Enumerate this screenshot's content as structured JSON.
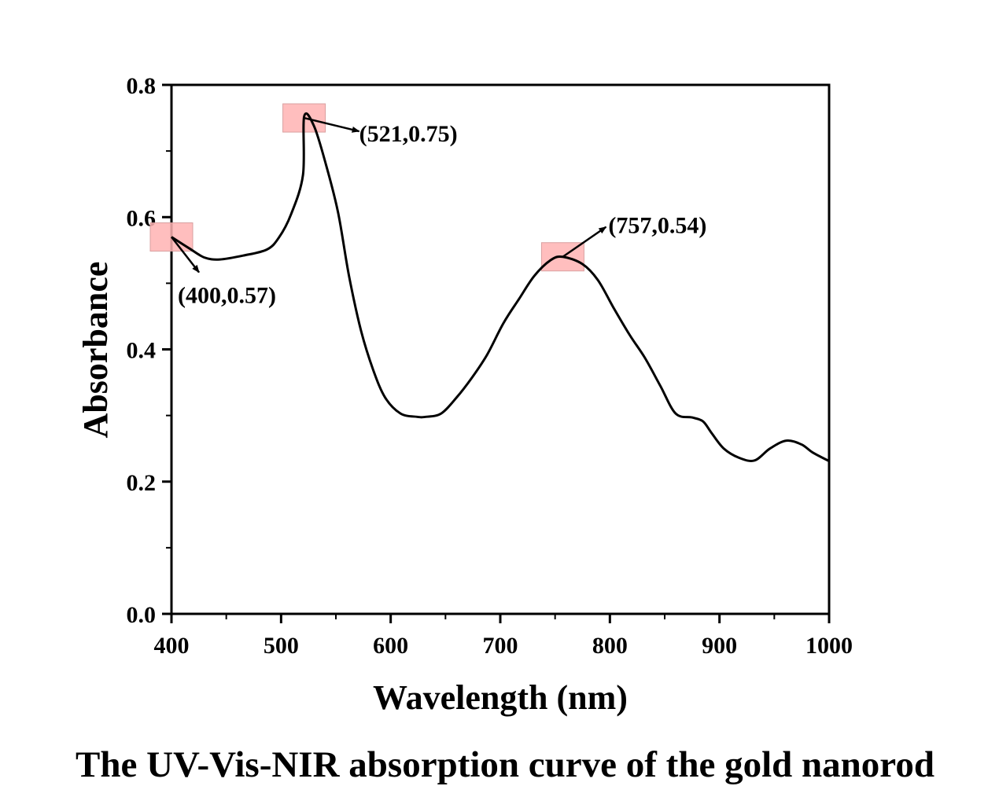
{
  "caption": "The UV-Vis-NIR absorption curve of the gold nanorod",
  "chart_data": {
    "type": "line",
    "title": "",
    "xlabel": "Wavelength (nm)",
    "ylabel": "Absorbance",
    "xlim": [
      400,
      1000
    ],
    "ylim": [
      0.0,
      0.8
    ],
    "xticks": [
      400,
      500,
      600,
      700,
      800,
      900,
      1000
    ],
    "xtick_labels": [
      "400",
      "500",
      "600",
      "700",
      "800",
      "900",
      "1000"
    ],
    "xminor_ticks": [
      450,
      550,
      650,
      750,
      850,
      950
    ],
    "yticks": [
      0.0,
      0.2,
      0.4,
      0.6,
      0.8
    ],
    "ytick_labels": [
      "0.0",
      "0.2",
      "0.4",
      "0.6",
      "0.8"
    ],
    "yminor_ticks": [
      0.1,
      0.3,
      0.5,
      0.7
    ],
    "grid": false,
    "legend": "none",
    "line_color": "#000000",
    "series": [
      {
        "name": "gold nanorod",
        "x": [
          400,
          416,
          430,
          444,
          466,
          487,
          498,
          509,
          520,
          521,
          530,
          541,
          552,
          562,
          573,
          584,
          595,
          609,
          624,
          632,
          646,
          660,
          674,
          688,
          703,
          717,
          731,
          746,
          757,
          775,
          789,
          803,
          818,
          832,
          846,
          860,
          875,
          885,
          893,
          904,
          918,
          932,
          946,
          961,
          975,
          985,
          1000
        ],
        "y": [
          0.57,
          0.553,
          0.539,
          0.536,
          0.542,
          0.551,
          0.569,
          0.604,
          0.664,
          0.752,
          0.738,
          0.679,
          0.607,
          0.511,
          0.428,
          0.369,
          0.327,
          0.303,
          0.298,
          0.298,
          0.303,
          0.327,
          0.357,
          0.392,
          0.44,
          0.476,
          0.511,
          0.535,
          0.54,
          0.529,
          0.505,
          0.464,
          0.422,
          0.387,
          0.345,
          0.303,
          0.297,
          0.291,
          0.273,
          0.25,
          0.236,
          0.232,
          0.25,
          0.262,
          0.256,
          0.244,
          0.231
        ]
      }
    ],
    "annotations": [
      {
        "label": "(400,0.57)",
        "x": 400,
        "y": 0.57,
        "highlight_color": "#ffb3b3"
      },
      {
        "label": "(521,0.75)",
        "x": 521,
        "y": 0.75,
        "highlight_color": "#ffb3b3"
      },
      {
        "label": "(757,0.54)",
        "x": 757,
        "y": 0.54,
        "highlight_color": "#ffb3b3"
      }
    ]
  }
}
